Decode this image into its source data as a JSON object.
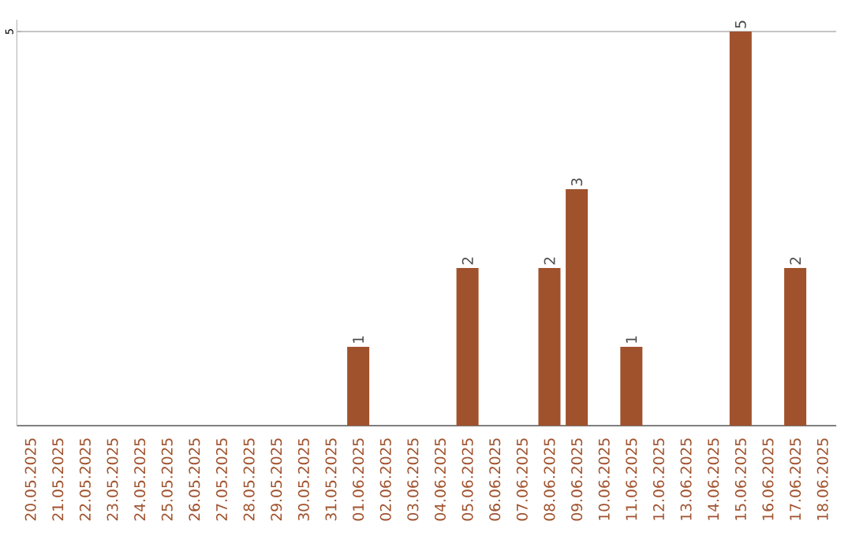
{
  "chart_data": {
    "type": "bar",
    "categories": [
      "20.05.2025",
      "21.05.2025",
      "22.05.2025",
      "23.05.2025",
      "24.05.2025",
      "25.05.2025",
      "26.05.2025",
      "27.05.2025",
      "28.05.2025",
      "29.05.2025",
      "30.05.2025",
      "31.05.2025",
      "01.06.2025",
      "02.06.2025",
      "03.06.2025",
      "04.06.2025",
      "05.06.2025",
      "06.06.2025",
      "07.06.2025",
      "08.06.2025",
      "09.06.2025",
      "10.06.2025",
      "11.06.2025",
      "12.06.2025",
      "13.06.2025",
      "14.06.2025",
      "15.06.2025",
      "16.06.2025",
      "17.06.2025",
      "18.06.2025"
    ],
    "values": [
      null,
      null,
      null,
      null,
      null,
      null,
      null,
      null,
      null,
      null,
      null,
      null,
      1,
      null,
      null,
      null,
      2,
      null,
      null,
      2,
      3,
      null,
      1,
      null,
      null,
      null,
      5,
      null,
      2,
      null
    ],
    "value_labels": [
      null,
      null,
      null,
      null,
      null,
      null,
      null,
      null,
      null,
      null,
      null,
      null,
      "1",
      null,
      null,
      null,
      "2",
      null,
      null,
      "2",
      "3",
      null,
      "1",
      null,
      null,
      null,
      "5",
      null,
      "2",
      null
    ],
    "color": "#a0522d",
    "ylim": [
      0,
      5.15
    ],
    "yticks": [
      5
    ],
    "grid": "y"
  }
}
